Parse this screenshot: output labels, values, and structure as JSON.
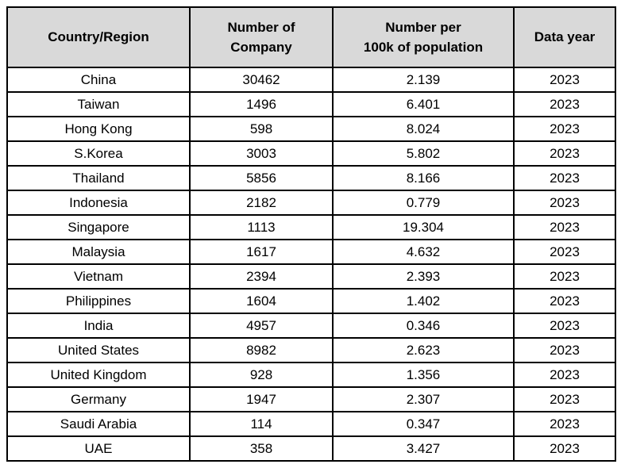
{
  "chart_data": {
    "type": "table",
    "title": "",
    "columns": [
      "Country/Region",
      "Number of Company",
      "Number per 100k of population",
      "Data year"
    ],
    "categories": [
      "China",
      "Taiwan",
      "Hong Kong",
      "S.Korea",
      "Thailand",
      "Indonesia",
      "Singapore",
      "Malaysia",
      "Vietnam",
      "Philippines",
      "India",
      "United States",
      "United Kingdom",
      "Germany",
      "Saudi Arabia",
      "UAE"
    ],
    "series": [
      {
        "name": "Number of Company",
        "values": [
          30462,
          1496,
          598,
          3003,
          5856,
          2182,
          1113,
          1617,
          2394,
          1604,
          4957,
          8982,
          928,
          1947,
          114,
          358
        ]
      },
      {
        "name": "Number per 100k of population",
        "values": [
          2.139,
          6.401,
          8.024,
          5.802,
          8.166,
          0.779,
          19.304,
          4.632,
          2.393,
          1.402,
          0.346,
          2.623,
          1.356,
          2.307,
          0.347,
          3.427
        ]
      },
      {
        "name": "Data year",
        "values": [
          2023,
          2023,
          2023,
          2023,
          2023,
          2023,
          2023,
          2023,
          2023,
          2023,
          2023,
          2023,
          2023,
          2023,
          2023,
          2023
        ]
      }
    ]
  },
  "table": {
    "header": [
      "Country/Region",
      "Number of\nCompany",
      "Number per\n100k of population",
      "Data year"
    ],
    "rows": [
      [
        "China",
        "30462",
        "2.139",
        "2023"
      ],
      [
        "Taiwan",
        "1496",
        "6.401",
        "2023"
      ],
      [
        "Hong Kong",
        "598",
        "8.024",
        "2023"
      ],
      [
        "S.Korea",
        "3003",
        "5.802",
        "2023"
      ],
      [
        "Thailand",
        "5856",
        "8.166",
        "2023"
      ],
      [
        "Indonesia",
        "2182",
        "0.779",
        "2023"
      ],
      [
        "Singapore",
        "1113",
        "19.304",
        "2023"
      ],
      [
        "Malaysia",
        "1617",
        "4.632",
        "2023"
      ],
      [
        "Vietnam",
        "2394",
        "2.393",
        "2023"
      ],
      [
        "Philippines",
        "1604",
        "1.402",
        "2023"
      ],
      [
        "India",
        "4957",
        "0.346",
        "2023"
      ],
      [
        "United States",
        "8982",
        "2.623",
        "2023"
      ],
      [
        "United Kingdom",
        "928",
        "1.356",
        "2023"
      ],
      [
        "Germany",
        "1947",
        "2.307",
        "2023"
      ],
      [
        "Saudi Arabia",
        "114",
        "0.347",
        "2023"
      ],
      [
        "UAE",
        "358",
        "3.427",
        "2023"
      ]
    ]
  },
  "colors": {
    "header_bg": "#d9d9d9",
    "border": "#000000",
    "text": "#000000",
    "row_bg": "#ffffff"
  }
}
